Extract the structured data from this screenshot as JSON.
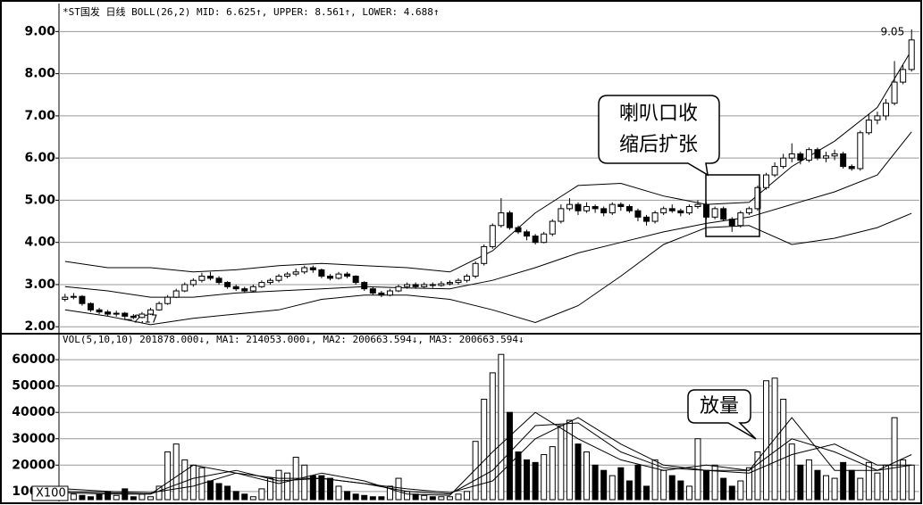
{
  "chart_data": [
    {
      "type": "candlestick",
      "title": "*ST国发 日线 BOLL(26,2) MID: 6.625↑, UPPER: 8.561↑, LOWER: 4.688↑",
      "annotation": [
        "喇叭口收",
        "缩后扩张"
      ],
      "ylim": [
        1.92,
        9.24
      ],
      "yticks": [
        {
          "value": 2,
          "label": "2.00"
        },
        {
          "value": 3,
          "label": "3.00"
        },
        {
          "value": 4,
          "label": "4.00"
        },
        {
          "value": 5,
          "label": "5.00"
        },
        {
          "value": 6,
          "label": "6.00"
        },
        {
          "value": 7,
          "label": "7.00"
        },
        {
          "value": 8,
          "label": "8.00"
        },
        {
          "value": 9,
          "label": "9.00"
        }
      ],
      "grid": true,
      "color": "#000000",
      "open": [
        2.65,
        2.7,
        2.72,
        2.55,
        2.4,
        2.35,
        2.3,
        2.32,
        2.25,
        2.22,
        2.3,
        2.4,
        2.55,
        2.7,
        2.85,
        3.0,
        3.1,
        3.2,
        3.15,
        3.05,
        2.95,
        2.9,
        2.85,
        2.95,
        3.05,
        3.1,
        3.2,
        3.25,
        3.3,
        3.4,
        3.35,
        3.2,
        3.15,
        3.25,
        3.2,
        3.05,
        2.9,
        2.8,
        2.75,
        2.85,
        2.95,
        3.0,
        2.95,
        3.0,
        2.98,
        3.02,
        3.05,
        3.1,
        3.2,
        3.5,
        3.9,
        4.4,
        4.7,
        4.35,
        4.25,
        4.15,
        4.0,
        4.2,
        4.5,
        4.8,
        4.9,
        4.75,
        4.85,
        4.8,
        4.7,
        4.9,
        4.85,
        4.75,
        4.6,
        4.5,
        4.7,
        4.8,
        4.75,
        4.7,
        4.85,
        4.9,
        4.6,
        4.8,
        4.55,
        4.4,
        4.7,
        4.8,
        5.3,
        5.6,
        5.8,
        6.0,
        6.1,
        5.95,
        6.2,
        6.0,
        6.05,
        6.1,
        5.8,
        5.75,
        6.6,
        6.9,
        7.0,
        7.3,
        7.8,
        8.1
      ],
      "high": [
        2.78,
        2.8,
        2.75,
        2.58,
        2.45,
        2.4,
        2.38,
        2.35,
        2.3,
        2.35,
        2.45,
        2.6,
        2.75,
        2.9,
        3.05,
        3.15,
        3.28,
        3.3,
        3.2,
        3.08,
        3.0,
        2.95,
        3.0,
        3.1,
        3.15,
        3.25,
        3.3,
        3.38,
        3.45,
        3.45,
        3.38,
        3.25,
        3.3,
        3.3,
        3.22,
        3.08,
        2.95,
        2.85,
        2.9,
        3.0,
        3.05,
        3.05,
        3.05,
        3.05,
        3.08,
        3.1,
        3.15,
        3.25,
        3.55,
        3.95,
        4.45,
        5.05,
        4.75,
        4.4,
        4.3,
        4.2,
        4.25,
        4.55,
        4.9,
        5.05,
        4.95,
        4.95,
        4.9,
        4.85,
        4.95,
        4.95,
        4.9,
        4.8,
        4.65,
        4.75,
        4.85,
        4.9,
        4.8,
        4.9,
        5.0,
        4.95,
        4.85,
        4.85,
        4.6,
        4.75,
        4.85,
        5.35,
        5.65,
        5.9,
        6.1,
        6.35,
        6.15,
        6.25,
        6.25,
        6.15,
        6.2,
        6.15,
        5.85,
        6.65,
        7.05,
        7.1,
        7.4,
        8.3,
        8.2,
        9.05
      ],
      "low": [
        2.6,
        2.65,
        2.5,
        2.35,
        2.3,
        2.25,
        2.24,
        2.17,
        2.18,
        2.2,
        2.28,
        2.38,
        2.52,
        2.68,
        2.82,
        2.95,
        3.05,
        3.1,
        3.0,
        2.9,
        2.85,
        2.8,
        2.82,
        2.92,
        3.0,
        3.05,
        3.15,
        3.2,
        3.25,
        3.28,
        3.15,
        3.1,
        3.12,
        3.15,
        3.0,
        2.85,
        2.75,
        2.7,
        2.72,
        2.82,
        2.9,
        2.9,
        2.92,
        2.92,
        2.95,
        2.98,
        3.0,
        3.05,
        3.15,
        3.45,
        3.85,
        4.35,
        4.3,
        4.2,
        4.05,
        3.95,
        3.98,
        4.15,
        4.45,
        4.75,
        4.65,
        4.7,
        4.7,
        4.62,
        4.65,
        4.75,
        4.7,
        4.5,
        4.4,
        4.45,
        4.65,
        4.7,
        4.62,
        4.65,
        4.8,
        4.55,
        4.55,
        4.5,
        4.25,
        4.35,
        4.65,
        4.75,
        5.25,
        5.55,
        5.75,
        5.9,
        5.85,
        5.9,
        5.95,
        5.9,
        5.95,
        5.75,
        5.7,
        5.7,
        6.55,
        6.8,
        6.9,
        7.25,
        7.75,
        8.05
      ],
      "close": [
        2.7,
        2.72,
        2.55,
        2.4,
        2.35,
        2.3,
        2.32,
        2.25,
        2.22,
        2.3,
        2.4,
        2.55,
        2.7,
        2.85,
        3.0,
        3.1,
        3.2,
        3.15,
        3.05,
        2.95,
        2.9,
        2.85,
        2.95,
        3.05,
        3.1,
        3.2,
        3.25,
        3.3,
        3.4,
        3.35,
        3.2,
        3.15,
        3.25,
        3.2,
        3.05,
        2.9,
        2.8,
        2.75,
        2.85,
        2.95,
        3.0,
        2.95,
        3.0,
        2.98,
        3.02,
        3.05,
        3.1,
        3.2,
        3.5,
        3.9,
        4.4,
        4.7,
        4.35,
        4.25,
        4.15,
        4.0,
        4.2,
        4.5,
        4.8,
        4.9,
        4.75,
        4.85,
        4.8,
        4.7,
        4.9,
        4.85,
        4.75,
        4.6,
        4.5,
        4.7,
        4.8,
        4.75,
        4.7,
        4.85,
        4.9,
        4.6,
        4.8,
        4.55,
        4.4,
        4.7,
        4.8,
        5.3,
        5.6,
        5.8,
        6.0,
        6.1,
        5.95,
        6.2,
        6.0,
        6.05,
        6.1,
        5.8,
        5.75,
        6.6,
        6.9,
        7.0,
        7.3,
        7.8,
        8.1,
        8.8
      ],
      "bands": {
        "x": [
          0,
          5,
          10,
          15,
          20,
          25,
          30,
          35,
          40,
          45,
          50,
          55,
          60,
          65,
          70,
          75,
          80,
          85,
          90,
          95,
          99
        ],
        "upper": [
          3.55,
          3.4,
          3.4,
          3.3,
          3.35,
          3.45,
          3.5,
          3.45,
          3.4,
          3.3,
          3.8,
          4.7,
          5.35,
          5.4,
          5.1,
          4.9,
          4.95,
          5.8,
          6.4,
          7.2,
          8.56
        ],
        "mid": [
          2.95,
          2.85,
          2.7,
          2.7,
          2.8,
          2.85,
          2.9,
          2.95,
          2.92,
          2.9,
          3.1,
          3.4,
          3.75,
          4.0,
          4.25,
          4.45,
          4.6,
          4.9,
          5.2,
          5.6,
          6.62
        ],
        "lower": [
          2.4,
          2.25,
          2.05,
          2.2,
          2.3,
          2.4,
          2.65,
          2.75,
          2.75,
          2.65,
          2.4,
          2.1,
          2.5,
          3.2,
          3.95,
          4.35,
          4.4,
          3.95,
          4.1,
          4.35,
          4.69
        ]
      }
    },
    {
      "type": "bar",
      "title": "VOL(5,10,10) 201878.000↓, MA1: 214053.000↓, MA2: 200663.594↓, MA3: 200663.594↓",
      "annotation": "放量",
      "unit": "X100",
      "ylim": [
        6900,
        64100
      ],
      "yticks": [
        10000,
        20000,
        30000,
        40000,
        50000,
        60000
      ],
      "grid": true,
      "color": "#000000",
      "values": [
        10000,
        9000,
        8500,
        8000,
        9000,
        10000,
        8500,
        11000,
        8000,
        9000,
        8000,
        12000,
        25000,
        28000,
        22000,
        20000,
        19000,
        14000,
        13000,
        12000,
        10000,
        9000,
        8000,
        11000,
        15000,
        18000,
        17000,
        23000,
        20000,
        16000,
        16000,
        15000,
        12000,
        10000,
        9000,
        8500,
        8000,
        8000,
        12000,
        15000,
        10000,
        9000,
        8500,
        8000,
        8000,
        8000,
        9000,
        10000,
        29000,
        45000,
        55000,
        62000,
        40000,
        25000,
        22000,
        21000,
        24000,
        27000,
        35000,
        37000,
        28000,
        25000,
        20000,
        18000,
        16000,
        19000,
        14000,
        20000,
        12000,
        22000,
        18000,
        16000,
        14000,
        12000,
        30000,
        18000,
        20000,
        15000,
        12000,
        14000,
        19000,
        25000,
        52000,
        53000,
        45000,
        28000,
        20000,
        22000,
        18000,
        16000,
        15000,
        21000,
        18000,
        15000,
        21000,
        17000,
        20000,
        38000,
        22000,
        20000
      ],
      "ma": {
        "x": [
          0,
          5,
          10,
          15,
          20,
          25,
          30,
          35,
          40,
          45,
          50,
          55,
          60,
          65,
          70,
          75,
          80,
          85,
          90,
          95,
          99
        ],
        "ma1": [
          9500,
          9000,
          9000,
          20000,
          17000,
          13000,
          17000,
          14000,
          9000,
          8500,
          25000,
          40000,
          30000,
          22000,
          18000,
          20000,
          18000,
          38000,
          18000,
          18000,
          24000
        ],
        "ma2": [
          10000,
          9500,
          9000,
          15000,
          18000,
          14000,
          15000,
          13000,
          10000,
          9000,
          18000,
          35000,
          36000,
          25000,
          19000,
          18000,
          18000,
          30000,
          25000,
          18000,
          20000
        ],
        "ma3": [
          11000,
          10000,
          9500,
          12000,
          17000,
          15000,
          15000,
          13000,
          11000,
          9500,
          14000,
          30000,
          38000,
          28000,
          20000,
          18000,
          17000,
          24000,
          28000,
          20000,
          20000
        ]
      }
    }
  ]
}
